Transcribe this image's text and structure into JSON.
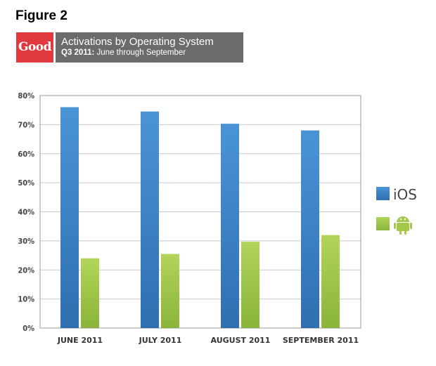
{
  "figure_label": "Figure 2",
  "logo_text": "Good",
  "banner": {
    "title": "Activations by Operating System",
    "subtitle_bold": "Q3 2011:",
    "subtitle_rest": " June through September"
  },
  "colors": {
    "ios": "#3f86c9",
    "android": "#a3c84a",
    "grid": "#c8c8c8",
    "frame": "#9a9a9a"
  },
  "chart_data": {
    "type": "bar",
    "title": "Activations by Operating System",
    "categories": [
      "JUNE 2011",
      "JULY 2011",
      "AUGUST 2011",
      "SEPTEMBER 2011"
    ],
    "series": [
      {
        "name": "iOS",
        "values": [
          76,
          74.5,
          70.3,
          68
        ]
      },
      {
        "name": "Android",
        "values": [
          24,
          25.5,
          29.7,
          32
        ]
      }
    ],
    "yticks": [
      "0%",
      "10%",
      "20%",
      "30%",
      "40%",
      "50%",
      "60%",
      "70%",
      "80%"
    ],
    "ylim": [
      0,
      80
    ],
    "grid": true,
    "legend_position": "right",
    "legend": [
      {
        "label": "iOS",
        "icon": "ios-wordmark"
      },
      {
        "label": "",
        "icon": "android-robot-icon"
      }
    ]
  }
}
